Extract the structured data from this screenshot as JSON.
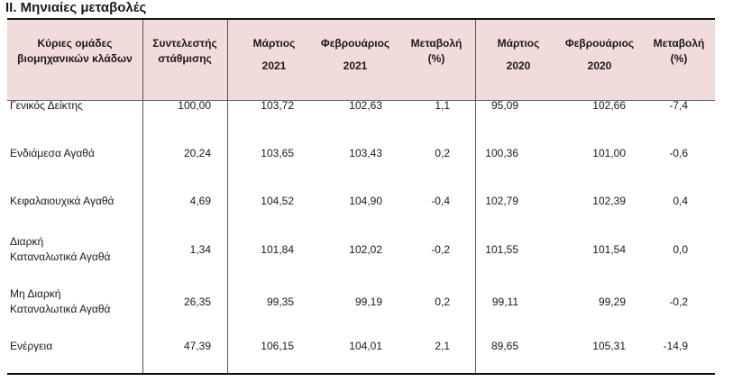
{
  "title": "II. Μηνιαίες μεταβολές",
  "header": {
    "col1": [
      "Κύριες ομάδες",
      "βιομηχανικών κλάδων"
    ],
    "col2": [
      "Συντελεστής",
      "στάθμισης"
    ],
    "col3": [
      "Μάρτιος",
      "2021"
    ],
    "col4": [
      "Φεβρουάριος",
      "2021"
    ],
    "col5": [
      "Μεταβολή",
      "(%)"
    ],
    "col6": [
      "Μάρτιος",
      "2020"
    ],
    "col7": [
      "Φεβρουάριος",
      "2020"
    ],
    "col8": [
      "Μεταβολή",
      "(%)"
    ]
  },
  "rows": [
    {
      "name": [
        "Γενικός Δείκτης"
      ],
      "values": [
        "100,00",
        "103,72",
        "102,63",
        "1,1",
        "95,09",
        "102,66",
        "-7,4"
      ]
    },
    {
      "name": [
        "Ενδιάμεσα Αγαθά"
      ],
      "values": [
        "20,24",
        "103,65",
        "103,43",
        "0,2",
        "100,36",
        "101,00",
        "-0,6"
      ]
    },
    {
      "name": [
        "Κεφαλαιουχικά Αγαθά"
      ],
      "values": [
        "4,69",
        "104,52",
        "104,90",
        "-0,4",
        "102,79",
        "102,39",
        "0,4"
      ]
    },
    {
      "name": [
        "Διαρκή",
        "Καταναλωτικά Αγαθά"
      ],
      "values": [
        "1,34",
        "101,84",
        "102,02",
        "-0,2",
        "101,55",
        "101,54",
        "0,0"
      ]
    },
    {
      "name": [
        "Μη Διαρκή",
        "Καταναλωτικά Αγαθά"
      ],
      "values": [
        "26,35",
        "99,35",
        "99,19",
        "0,2",
        "99,11",
        "99,29",
        "-0,2"
      ]
    },
    {
      "name": [
        "Ενέργεια"
      ],
      "values": [
        "47,39",
        "106,15",
        "104,01",
        "2,1",
        "89,65",
        "105,31",
        "-14,9"
      ]
    }
  ]
}
